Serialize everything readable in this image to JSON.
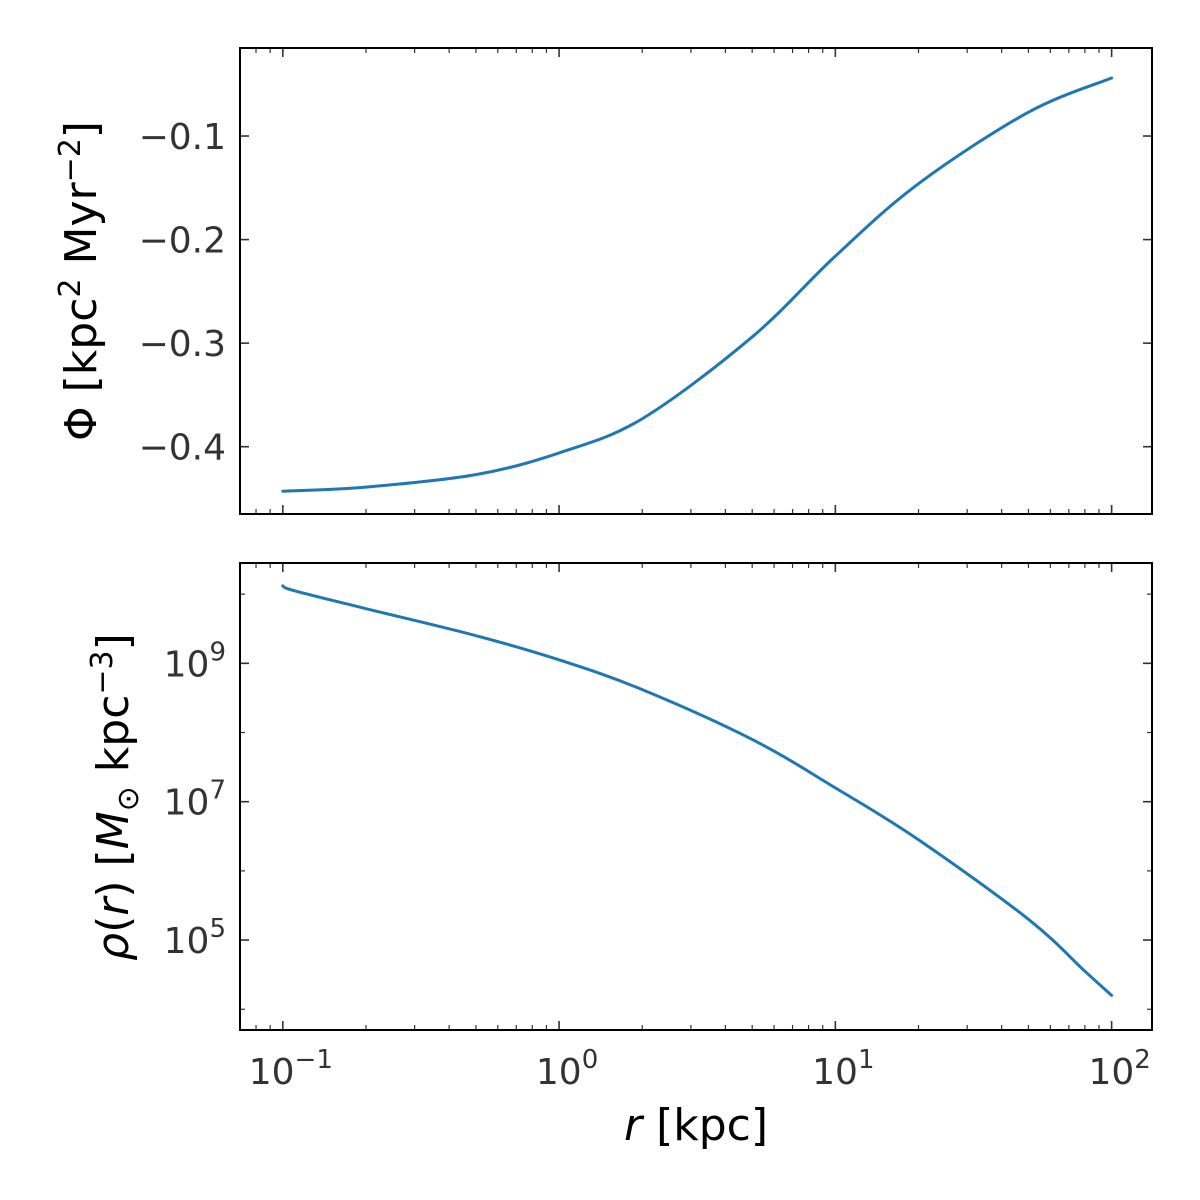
{
  "chart_data": [
    {
      "type": "line",
      "panel": "top",
      "xscale": "log",
      "xlim": [
        0.07,
        140
      ],
      "ylim": [
        -0.465,
        -0.015
      ],
      "ylabel": "Φ [kpc² Myr⁻²]",
      "ylabel_parts": {
        "sym": "Φ",
        "unit_pre": " [kpc",
        "sup1": "2",
        "unit_mid": " Myr",
        "sup2": "−2",
        "unit_post": "]"
      },
      "yticks": [
        -0.4,
        -0.3,
        -0.2,
        -0.1
      ],
      "ytick_labels": [
        "−0.4",
        "−0.3",
        "−0.2",
        "−0.1"
      ],
      "grid": false,
      "color": "#1f77b4",
      "series": [
        {
          "x": [
            0.1,
            0.2,
            0.5,
            1.0,
            2.0,
            5.0,
            10.0,
            20.0,
            50.0,
            100.0
          ],
          "y": [
            -0.443,
            -0.439,
            -0.427,
            -0.406,
            -0.373,
            -0.294,
            -0.216,
            -0.146,
            -0.077,
            -0.044
          ]
        }
      ]
    },
    {
      "type": "line",
      "panel": "bottom",
      "xscale": "log",
      "yscale": "log",
      "xlim": [
        0.07,
        140
      ],
      "ylim_log10": [
        3.7,
        10.45
      ],
      "xlabel": "r [kpc]",
      "xlabel_parts": {
        "var": "r",
        "unit": " [kpc]"
      },
      "ylabel": "ρ(r) [M☉ kpc⁻³]",
      "ylabel_parts": {
        "rho": "ρ",
        "paren_open": "(",
        "var": "r",
        "paren_close": ")",
        "bracket": " [",
        "mass": "M",
        "sun": "⊙",
        "unit": " kpc",
        "sup": "−3",
        "close": "]"
      },
      "xticks": [
        0.1,
        1,
        10,
        100
      ],
      "xtick_labels": [
        {
          "base": "10",
          "exp": "−1"
        },
        {
          "base": "10",
          "exp": "0"
        },
        {
          "base": "10",
          "exp": "1"
        },
        {
          "base": "10",
          "exp": "2"
        }
      ],
      "yticks_log10": [
        5,
        7,
        9
      ],
      "ytick_labels": [
        {
          "base": "10",
          "exp": "5"
        },
        {
          "base": "10",
          "exp": "7"
        },
        {
          "base": "10",
          "exp": "9"
        }
      ],
      "grid": false,
      "color": "#1f77b4",
      "series": [
        {
          "x": [
            0.1,
            0.11,
            0.2,
            0.5,
            1.0,
            2.0,
            5.0,
            10.0,
            20.0,
            50.0,
            80.0,
            100.0
          ],
          "y_log10": [
            10.12,
            10.05,
            9.79,
            9.4,
            9.05,
            8.62,
            7.9,
            7.2,
            6.45,
            5.3,
            4.55,
            4.2
          ]
        }
      ]
    }
  ]
}
